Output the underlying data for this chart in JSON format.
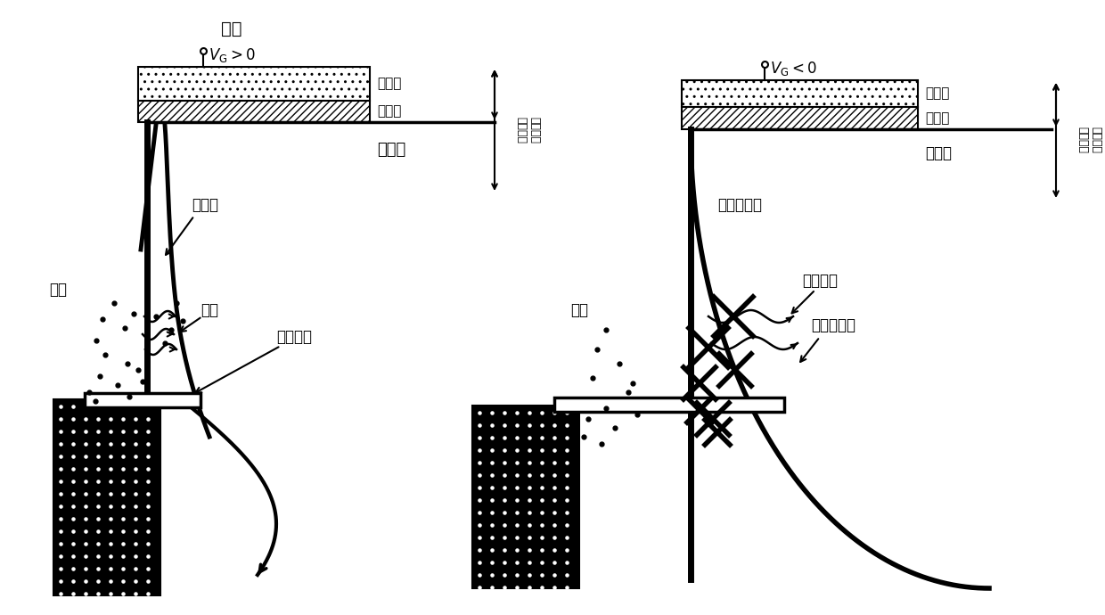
{
  "fig_width": 12.4,
  "fig_height": 6.9,
  "bg_color": "#ffffff",
  "left": {
    "title": "栅压",
    "vg": "$V_{\\mathbf{G}}>0$",
    "jinshu": "栅金属",
    "jieshizhi": "栅介质",
    "bandaoti": "半导体",
    "boshi": "薄势垒",
    "suichuan": "遂穿",
    "dianliu": "遂穿电流",
    "dianzi": "电子",
    "side_label": "栅极电容结构示意"
  },
  "right": {
    "vg": "$V_{\\mathbf{G}}<0$",
    "jinshu": "栅金属",
    "jieshizhi": "栅介质",
    "bandaoti": "半导体",
    "genboshi": "更厚的势垒",
    "wufa": "无法遂穿",
    "wudianliu": "无遂穿电流",
    "dianzi": "电子",
    "side_label": "栅极电容结构示意"
  }
}
